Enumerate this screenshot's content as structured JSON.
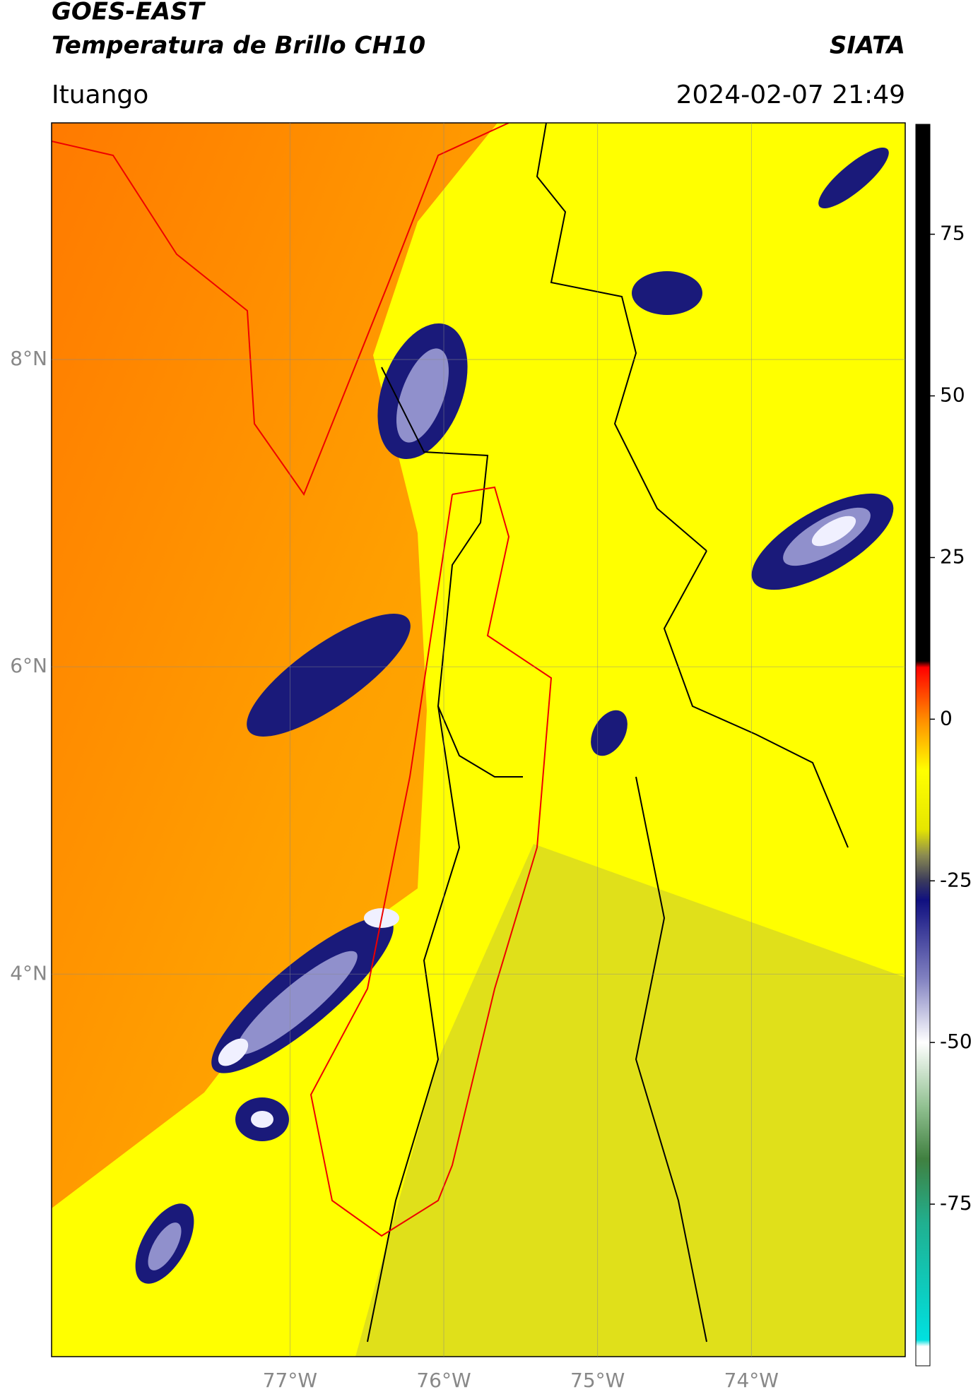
{
  "header": {
    "title": "GOES-EAST",
    "subtitle": "Temperatura de Brillo CH10",
    "source": "SIATA",
    "location": "Ituango",
    "datetime": "2024-02-07 21:49"
  },
  "map": {
    "latlim": [
      1.51,
      9.54
    ],
    "lonlim": [
      -78.55,
      -73.0
    ],
    "grid": true,
    "lat_ticks": [
      {
        "value": 4,
        "label": "4°N"
      },
      {
        "value": 6,
        "label": "6°N"
      },
      {
        "value": 8,
        "label": "8°N"
      }
    ],
    "lon_ticks": [
      {
        "value": -77,
        "label": "77°W"
      },
      {
        "value": -76,
        "label": "76°W"
      },
      {
        "value": -75,
        "label": "75°W"
      },
      {
        "value": -74,
        "label": "74°W"
      }
    ]
  },
  "colorbar": {
    "range": [
      -100,
      92
    ],
    "ticks": [
      -75,
      -50,
      -25,
      0,
      25,
      50,
      75
    ],
    "colormap": [
      {
        "value": 92,
        "color": "#000000"
      },
      {
        "value": 9,
        "color": "#000000"
      },
      {
        "value": 8,
        "color": "#ff0000"
      },
      {
        "value": 0,
        "color": "#ff8c00"
      },
      {
        "value": -8,
        "color": "#ffff00"
      },
      {
        "value": -17,
        "color": "#e6e600"
      },
      {
        "value": -21,
        "color": "#8c8c50"
      },
      {
        "value": -25,
        "color": "#3a3a5c"
      },
      {
        "value": -28,
        "color": "#101080"
      },
      {
        "value": -40,
        "color": "#8080c0"
      },
      {
        "value": -50,
        "color": "#ffffff"
      },
      {
        "value": -60,
        "color": "#90c090"
      },
      {
        "value": -68,
        "color": "#408040"
      },
      {
        "value": -78,
        "color": "#20b090"
      },
      {
        "value": -96,
        "color": "#00e0e0"
      },
      {
        "value": -97,
        "color": "#ffffff"
      },
      {
        "value": -100,
        "color": "#ffffff"
      }
    ]
  }
}
